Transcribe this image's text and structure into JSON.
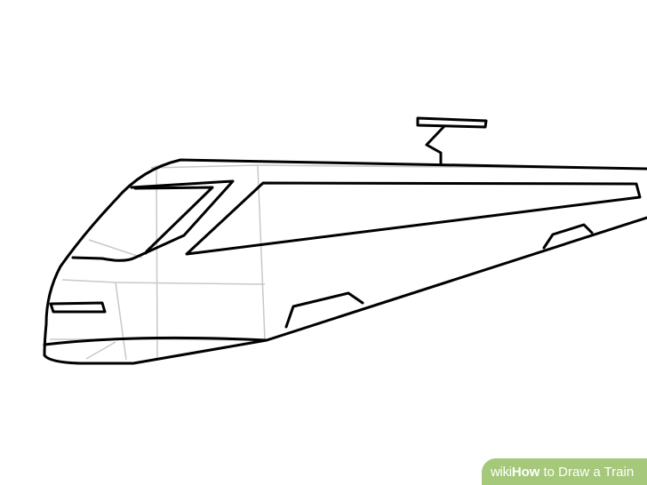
{
  "image": {
    "background_color": "#ffffff",
    "outline_color": "#000000",
    "guide_line_color": "#c8c8c8"
  },
  "watermark": {
    "brand": "wiki",
    "how": "How",
    "rest": "to Draw a Train",
    "background_color": "#a5c87a",
    "text_color": "#ffffff"
  }
}
